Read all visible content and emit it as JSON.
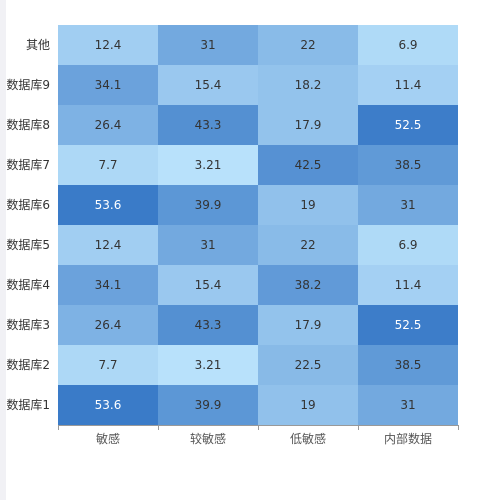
{
  "chart_data": {
    "type": "heatmap",
    "title": "",
    "xlabel": "",
    "ylabel": "",
    "x_categories": [
      "敏感",
      "较敏感",
      "低敏感",
      "内部数据"
    ],
    "y_categories": [
      "数据库1",
      "数据库2",
      "数据库3",
      "数据库4",
      "数据库5",
      "数据库6",
      "数据库7",
      "数据库8",
      "数据库9",
      "其他"
    ],
    "values": [
      [
        "53.6",
        "39.9",
        "19",
        "31"
      ],
      [
        "7.7",
        "3.21",
        "22.5",
        "38.5"
      ],
      [
        "26.4",
        "43.3",
        "17.9",
        "52.5"
      ],
      [
        "34.1",
        "15.4",
        "38.2",
        "11.4"
      ],
      [
        "12.4",
        "31",
        "22",
        "6.9"
      ],
      [
        "53.6",
        "39.9",
        "19",
        "31"
      ],
      [
        "7.7",
        "3.21",
        "42.5",
        "38.5"
      ],
      [
        "26.4",
        "43.3",
        "17.9",
        "52.5"
      ],
      [
        "34.1",
        "15.4",
        "18.2",
        "11.4"
      ],
      [
        "12.4",
        "31",
        "22",
        "6.9"
      ]
    ],
    "color_range": [
      "#b8e1fb",
      "#3a7bc8"
    ],
    "value_min": 3.21,
    "value_max": 53.6,
    "legend": "none",
    "grid": false
  }
}
